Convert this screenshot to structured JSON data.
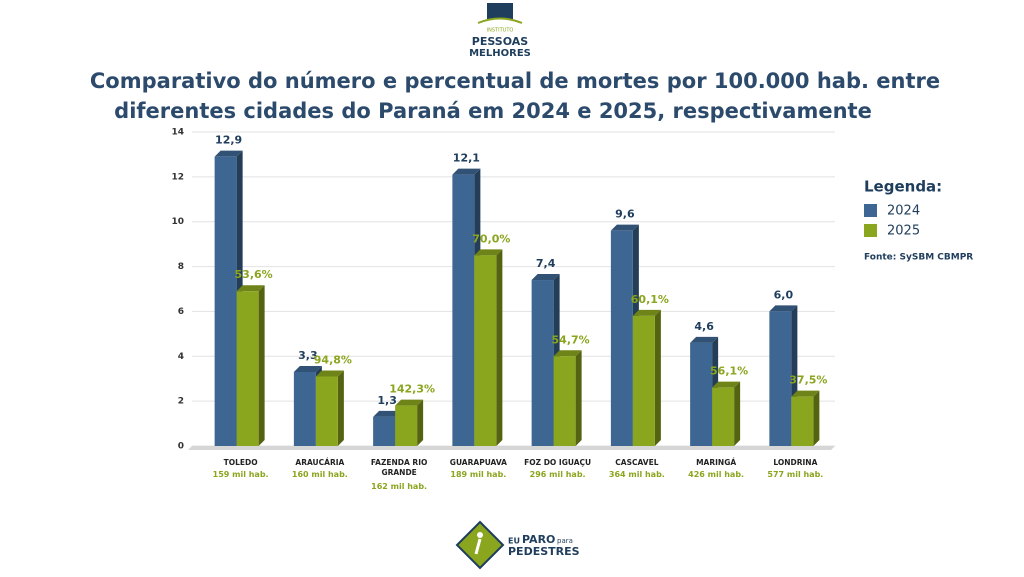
{
  "logo_top": {
    "line1": "INSTITUTO",
    "line2": "PESSOAS",
    "line3": "MELHORES"
  },
  "logo_bottom": {
    "line1": "EU",
    "line2": "PARO",
    "line3": "para",
    "line4": "PEDESTRES"
  },
  "chart_data": {
    "type": "bar3d",
    "title": "Comparativo do número e percentual de mortes por 100.000 hab. entre",
    "title_line2": "diferentes cidades do Paraná em 2024 e 2025, respectivamente",
    "categories": [
      "TOLEDO",
      "ARAUCÁRIA",
      "FAZENDA RIO GRANDE",
      "GUARAPUAVA",
      "FOZ DO IGUAÇU",
      "CASCAVEL",
      "MARINGÁ",
      "LONDRINA"
    ],
    "populations": [
      "159 mil hab.",
      "160 mil hab.",
      "162 mil hab.",
      "189 mil hab.",
      "296 mil hab.",
      "364 mil hab.",
      "426 mil hab.",
      "577 mil hab."
    ],
    "series": [
      {
        "name": "2024",
        "color": "#3d6792",
        "label_color": "#1f3d5c",
        "values": [
          12.9,
          3.3,
          1.3,
          12.1,
          7.4,
          9.6,
          4.6,
          6.0
        ],
        "value_labels": [
          "12,9",
          "3,3",
          "1,3",
          "12,1",
          "7,4",
          "9,6",
          "4,6",
          "6,0"
        ]
      },
      {
        "name": "2025",
        "color": "#8aa51e",
        "label_color": "#8aa51e",
        "values": [
          6.9,
          3.1,
          1.8,
          8.5,
          4.0,
          5.8,
          2.6,
          2.2
        ],
        "percent_labels": [
          "53,6%",
          "94,8%",
          "142,3%",
          "70,0%",
          "54,7%",
          "60,1%",
          "56,1%",
          "37,5%"
        ]
      }
    ],
    "ylim": [
      0,
      14
    ],
    "yticks": [
      0,
      2,
      4,
      6,
      8,
      10,
      12,
      14
    ],
    "grid": true,
    "legend_title": "Legenda:",
    "legend_position": "right",
    "source": "Fonte: SySBM CBMPR"
  }
}
